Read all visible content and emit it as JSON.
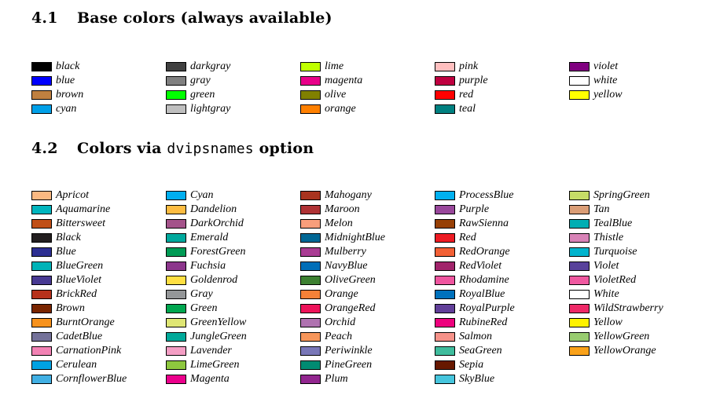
{
  "section1": {
    "number": "4.1",
    "title": "Base colors (always available)",
    "columns": [
      [
        {
          "name": "black",
          "color": "#000000"
        },
        {
          "name": "blue",
          "color": "#0000ff"
        },
        {
          "name": "brown",
          "color": "#bf8040"
        },
        {
          "name": "cyan",
          "color": "#00a0e8"
        }
      ],
      [
        {
          "name": "darkgray",
          "color": "#404040"
        },
        {
          "name": "gray",
          "color": "#808080"
        },
        {
          "name": "green",
          "color": "#00ff00"
        },
        {
          "name": "lightgray",
          "color": "#bfbfbf"
        }
      ],
      [
        {
          "name": "lime",
          "color": "#bfff00"
        },
        {
          "name": "magenta",
          "color": "#e8008a"
        },
        {
          "name": "olive",
          "color": "#808000"
        },
        {
          "name": "orange",
          "color": "#ff8000"
        }
      ],
      [
        {
          "name": "pink",
          "color": "#ffbfbf"
        },
        {
          "name": "purple",
          "color": "#bf0040"
        },
        {
          "name": "red",
          "color": "#ff0000"
        },
        {
          "name": "teal",
          "color": "#008080"
        }
      ],
      [
        {
          "name": "violet",
          "color": "#800080"
        },
        {
          "name": "white",
          "color": "#ffffff"
        },
        {
          "name": "yellow",
          "color": "#ffff00"
        }
      ]
    ]
  },
  "section2": {
    "number": "4.2",
    "title_prefix": "Colors via ",
    "title_code": "dvipsnames",
    "title_suffix": " option",
    "columns": [
      [
        {
          "name": "Apricot",
          "color": "#fbb982"
        },
        {
          "name": "Aquamarine",
          "color": "#00b5be"
        },
        {
          "name": "Bittersweet",
          "color": "#c04f17"
        },
        {
          "name": "Black",
          "color": "#221e1f"
        },
        {
          "name": "Blue",
          "color": "#2d2f92"
        },
        {
          "name": "BlueGreen",
          "color": "#00b3b8"
        },
        {
          "name": "BlueViolet",
          "color": "#473992"
        },
        {
          "name": "BrickRed",
          "color": "#b6321c"
        },
        {
          "name": "Brown",
          "color": "#792500"
        },
        {
          "name": "BurntOrange",
          "color": "#f7921d"
        },
        {
          "name": "CadetBlue",
          "color": "#74729a"
        },
        {
          "name": "CarnationPink",
          "color": "#f282b4"
        },
        {
          "name": "Cerulean",
          "color": "#00a2e3"
        },
        {
          "name": "CornflowerBlue",
          "color": "#41b0e4"
        }
      ],
      [
        {
          "name": "Cyan",
          "color": "#00aeef"
        },
        {
          "name": "Dandelion",
          "color": "#fdbc42"
        },
        {
          "name": "DarkOrchid",
          "color": "#a4538a"
        },
        {
          "name": "Emerald",
          "color": "#00a99d"
        },
        {
          "name": "ForestGreen",
          "color": "#009b55"
        },
        {
          "name": "Fuchsia",
          "color": "#8c368c"
        },
        {
          "name": "Goldenrod",
          "color": "#ffdf42"
        },
        {
          "name": "Gray",
          "color": "#949698"
        },
        {
          "name": "Green",
          "color": "#00a64f"
        },
        {
          "name": "GreenYellow",
          "color": "#dfe674"
        },
        {
          "name": "JungleGreen",
          "color": "#00a99a"
        },
        {
          "name": "Lavender",
          "color": "#f49ec4"
        },
        {
          "name": "LimeGreen",
          "color": "#8dc73e"
        },
        {
          "name": "Magenta",
          "color": "#ec008c"
        }
      ],
      [
        {
          "name": "Mahogany",
          "color": "#a9341f"
        },
        {
          "name": "Maroon",
          "color": "#af3235"
        },
        {
          "name": "Melon",
          "color": "#f89e7b"
        },
        {
          "name": "MidnightBlue",
          "color": "#006795"
        },
        {
          "name": "Mulberry",
          "color": "#a93c93"
        },
        {
          "name": "NavyBlue",
          "color": "#006eb8"
        },
        {
          "name": "OliveGreen",
          "color": "#3c8031"
        },
        {
          "name": "Orange",
          "color": "#f58137"
        },
        {
          "name": "OrangeRed",
          "color": "#ed135a"
        },
        {
          "name": "Orchid",
          "color": "#af72b0"
        },
        {
          "name": "Peach",
          "color": "#f7965a"
        },
        {
          "name": "Periwinkle",
          "color": "#7977b8"
        },
        {
          "name": "PineGreen",
          "color": "#008b72"
        },
        {
          "name": "Plum",
          "color": "#92268f"
        }
      ],
      [
        {
          "name": "ProcessBlue",
          "color": "#00b0f0"
        },
        {
          "name": "Purple",
          "color": "#99479b"
        },
        {
          "name": "RawSienna",
          "color": "#974006"
        },
        {
          "name": "Red",
          "color": "#ed1b23"
        },
        {
          "name": "RedOrange",
          "color": "#f26035"
        },
        {
          "name": "RedViolet",
          "color": "#a1246b"
        },
        {
          "name": "Rhodamine",
          "color": "#ef559f"
        },
        {
          "name": "RoyalBlue",
          "color": "#0071bc"
        },
        {
          "name": "RoyalPurple",
          "color": "#613f99"
        },
        {
          "name": "RubineRed",
          "color": "#ed017d"
        },
        {
          "name": "Salmon",
          "color": "#f69289"
        },
        {
          "name": "SeaGreen",
          "color": "#3fbc9d"
        },
        {
          "name": "Sepia",
          "color": "#671800"
        },
        {
          "name": "SkyBlue",
          "color": "#46c5dd"
        }
      ],
      [
        {
          "name": "SpringGreen",
          "color": "#c6dc67"
        },
        {
          "name": "Tan",
          "color": "#da9d76"
        },
        {
          "name": "TealBlue",
          "color": "#00aeb3"
        },
        {
          "name": "Thistle",
          "color": "#d883b7"
        },
        {
          "name": "Turquoise",
          "color": "#00b4ce"
        },
        {
          "name": "Violet",
          "color": "#58429b"
        },
        {
          "name": "VioletRed",
          "color": "#ef58a0"
        },
        {
          "name": "White",
          "color": "#ffffff"
        },
        {
          "name": "WildStrawberry",
          "color": "#ee2967"
        },
        {
          "name": "Yellow",
          "color": "#fff200"
        },
        {
          "name": "YellowGreen",
          "color": "#98cc70"
        },
        {
          "name": "YellowOrange",
          "color": "#faa21a"
        }
      ]
    ]
  }
}
